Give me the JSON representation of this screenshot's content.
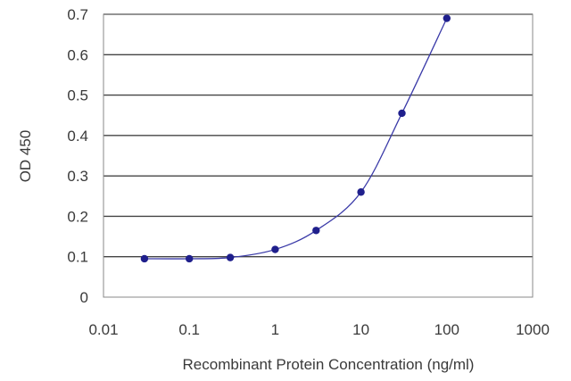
{
  "chart_data": {
    "type": "line",
    "title": "",
    "xlabel": "Recombinant Protein Concentration (ng/ml)",
    "ylabel": "OD 450",
    "x_scale": "log",
    "xlim": [
      0.01,
      1000
    ],
    "ylim": [
      0,
      0.7
    ],
    "x_ticks": [
      "0.01",
      "0.1",
      "1",
      "10",
      "100",
      "1000"
    ],
    "y_ticks": [
      "0",
      "0.1",
      "0.2",
      "0.3",
      "0.4",
      "0.5",
      "0.6",
      "0.7"
    ],
    "grid": "horizontal",
    "legend": "none",
    "series": [
      {
        "x": [
          0.03,
          0.1,
          0.3,
          1,
          3,
          10,
          30,
          100
        ],
        "y": [
          0.095,
          0.095,
          0.098,
          0.118,
          0.165,
          0.26,
          0.455,
          0.69
        ]
      }
    ],
    "colors": {
      "line": "#3a3aa8",
      "marker": "#1f1f8c",
      "grid": "#444444",
      "axis": "#888888"
    }
  }
}
